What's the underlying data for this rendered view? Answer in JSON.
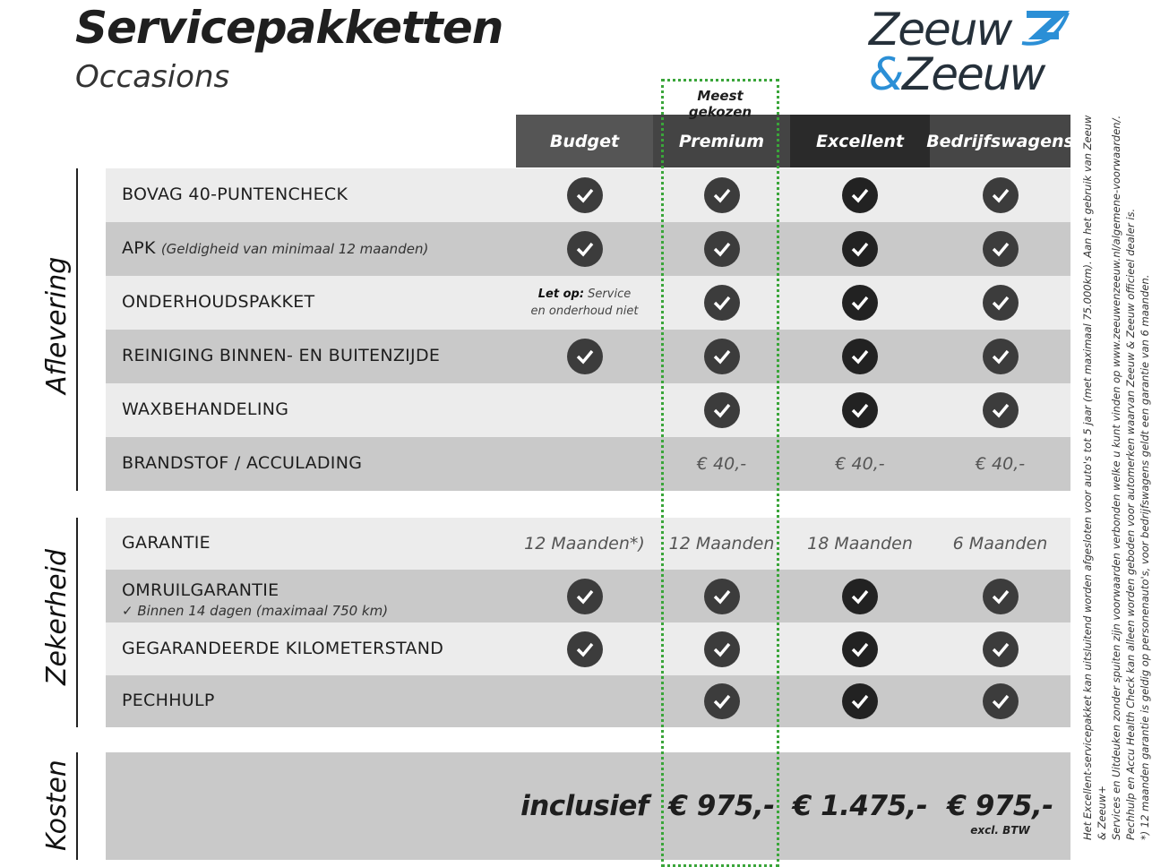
{
  "header": {
    "title": "Servicepakketten",
    "subtitle": "Occasions",
    "logo_line1": "Zeeuw",
    "logo_amp": "&",
    "logo_line2": "Zeeuw"
  },
  "highlight_label": "Meest gekozen",
  "colors": {
    "highlight": "#3aa53a",
    "logo_blue": "#2b8fd6"
  },
  "columns": [
    "Budget",
    "Premium",
    "Excellent",
    "Bedrijfswagens"
  ],
  "sections": [
    {
      "label": "Aflevering",
      "rows": [
        {
          "label": "BOVAG 40-PUNTENCHECK",
          "cells": [
            "check",
            "check",
            "check",
            "check"
          ]
        },
        {
          "label": "APK",
          "note": "(Geldigheid van minimaal 12 maanden)",
          "cells": [
            "check",
            "check",
            "check",
            "check"
          ]
        },
        {
          "label": "ONDERHOUDSPAKKET",
          "cells": [
            "letop",
            "check",
            "check",
            "check"
          ]
        },
        {
          "label": "REINIGING BINNEN- EN BUITENZIJDE",
          "cells": [
            "check",
            "check",
            "check",
            "check"
          ]
        },
        {
          "label": "WAXBEHANDELING",
          "cells": [
            "",
            "check",
            "check",
            "check"
          ]
        },
        {
          "label": "BRANDSTOF / ACCULADING",
          "cells": [
            "",
            "€ 40,-",
            "€ 40,-",
            "€ 40,-"
          ]
        }
      ]
    },
    {
      "label": "Zekerheid",
      "rows": [
        {
          "label": "GARANTIE",
          "cells": [
            "12 Maanden*)",
            "12 Maanden",
            "18 Maanden",
            "6 Maanden"
          ]
        },
        {
          "label": "OMRUILGARANTIE",
          "sub": "✓    Binnen 14 dagen (maximaal 750 km)",
          "cells": [
            "check",
            "check",
            "check",
            "check"
          ]
        },
        {
          "label": "GEGARANDEERDE KILOMETERSTAND",
          "cells": [
            "check",
            "check",
            "check",
            "check"
          ]
        },
        {
          "label": "PECHHULP",
          "cells": [
            "",
            "check",
            "check",
            "check"
          ]
        }
      ]
    },
    {
      "label": "Kosten",
      "rows": [
        {
          "label": "",
          "cells": [
            "inclusief",
            "€ 975,-",
            "€ 1.475,-",
            "€ 975,-"
          ],
          "excl": "excl. BTW"
        }
      ]
    }
  ],
  "let_op": {
    "bold": "Let op:",
    "text": " Service en onderhoud niet"
  },
  "footnotes": [
    "Het Excellent-servicepakket kan uitsluitend worden afgesloten voor auto's tot 5 jaar (met maximaal 75.000km). Aan het gebruik van Zeeuw & Zeeuw+",
    "Services en Uitdeuken zonder spuiten zijn voorwaarden verbonden welke u kunt vinden op www.zeeuwenzeeuw.nl/algemene-voorwaarden/.",
    "Pechhulp en Accu Health Check kan alleen worden geboden voor automerken waarvan Zeeuw & Zeeuw officieel dealer is.",
    "*) 12 maanden garantie is geldig op personenauto's, voor bedrijfswagens geldt een garantie van 6 maanden."
  ]
}
